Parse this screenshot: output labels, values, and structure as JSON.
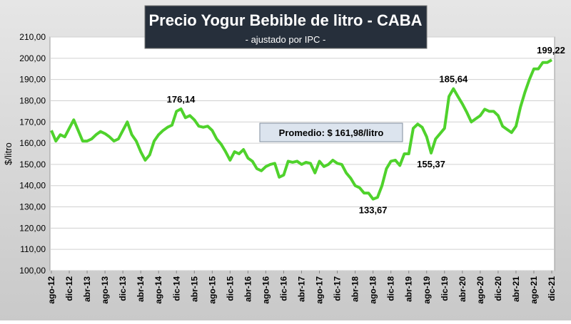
{
  "chart_data": {
    "type": "line",
    "title": "Precio Yogur Bebible de litro - CABA",
    "subtitle": "- ajustado por IPC -",
    "y_label": "$/litro",
    "annotations": [
      "Promedio: $ 161,98/litro"
    ],
    "categories": [
      "ago-12",
      null,
      null,
      null,
      "dic-12",
      null,
      null,
      null,
      "abr-13",
      null,
      null,
      null,
      "ago-13",
      null,
      null,
      null,
      "dic-13",
      null,
      null,
      null,
      "abr-14",
      null,
      null,
      null,
      "ago-14",
      null,
      null,
      null,
      "dic-14",
      null,
      null,
      null,
      "abr-15",
      null,
      null,
      null,
      "ago-15",
      null,
      null,
      null,
      "dic-15",
      null,
      null,
      null,
      "abr-16",
      null,
      null,
      null,
      "ago-16",
      null,
      null,
      null,
      "dic-16",
      null,
      null,
      null,
      "abr-17",
      null,
      null,
      null,
      "ago-17",
      null,
      null,
      null,
      "dic-17",
      null,
      null,
      null,
      "abr-18",
      null,
      null,
      null,
      "ago-18",
      null,
      null,
      null,
      "dic-18",
      null,
      null,
      null,
      "abr-19",
      null,
      null,
      null,
      "ago-19",
      null,
      null,
      null,
      "dic-19",
      null,
      null,
      null,
      "abr-20",
      null,
      null,
      null,
      "ago-20",
      null,
      null,
      null,
      "dic-20",
      null,
      null,
      null,
      "abr-21",
      null,
      null,
      null,
      "ago-21",
      null,
      null,
      null,
      "dic-21"
    ],
    "values": [
      166,
      161,
      164,
      163,
      167,
      171,
      166,
      161,
      161,
      162,
      164,
      165.5,
      164.5,
      163,
      161,
      162,
      166,
      170,
      164,
      161,
      156,
      152,
      154.5,
      161,
      164,
      166,
      167.5,
      168.5,
      175,
      176.14,
      172,
      173,
      171,
      168,
      167.5,
      168,
      166,
      162,
      159.5,
      156,
      152,
      156,
      155,
      157,
      153,
      151.5,
      148,
      147,
      149,
      150,
      150.5,
      144,
      145,
      151.5,
      151,
      151.5,
      150,
      151,
      150.5,
      146,
      151.5,
      149,
      150,
      152,
      150.5,
      150,
      146,
      143.5,
      140,
      139,
      136.5,
      136.5,
      133.67,
      134.5,
      140,
      148,
      151.5,
      152,
      149.5,
      155,
      155,
      167,
      169,
      167.5,
      163,
      155.37,
      162,
      164.5,
      167,
      182,
      185.64,
      182,
      178.5,
      174.5,
      170,
      171.5,
      173,
      176,
      175,
      175,
      173,
      168,
      166.5,
      165,
      168,
      177,
      184,
      190,
      195,
      195,
      198,
      198,
      199.22
    ],
    "value_labels": [
      null,
      null,
      null,
      null,
      null,
      null,
      null,
      null,
      null,
      null,
      null,
      null,
      null,
      null,
      null,
      null,
      null,
      null,
      null,
      null,
      null,
      null,
      null,
      null,
      null,
      null,
      null,
      null,
      null,
      "176,14",
      null,
      null,
      null,
      null,
      null,
      null,
      null,
      null,
      null,
      null,
      null,
      null,
      null,
      null,
      null,
      null,
      null,
      null,
      null,
      null,
      null,
      null,
      null,
      null,
      null,
      null,
      null,
      null,
      null,
      null,
      null,
      null,
      null,
      null,
      null,
      null,
      null,
      null,
      null,
      null,
      null,
      null,
      "133,67",
      null,
      null,
      null,
      null,
      null,
      null,
      null,
      null,
      null,
      null,
      null,
      null,
      "155,37",
      null,
      null,
      null,
      null,
      "185,64",
      null,
      null,
      null,
      null,
      null,
      null,
      null,
      null,
      null,
      null,
      null,
      null,
      null,
      null,
      null,
      null,
      null,
      null,
      null,
      null,
      null,
      "199,22"
    ],
    "color": "#4fd22c",
    "ylim": [
      100,
      210
    ],
    "yticks": [
      {
        "value": 100,
        "label": "100,00"
      },
      {
        "value": 110,
        "label": "110,00"
      },
      {
        "value": 120,
        "label": "120,00"
      },
      {
        "value": 130,
        "label": "130,00"
      },
      {
        "value": 140,
        "label": "140,00"
      },
      {
        "value": 150,
        "label": "150,00"
      },
      {
        "value": 160,
        "label": "160,00"
      },
      {
        "value": 170,
        "label": "170,00"
      },
      {
        "value": 180,
        "label": "180,00"
      },
      {
        "value": 190,
        "label": "190,00"
      },
      {
        "value": 200,
        "label": "200,00"
      },
      {
        "value": 210,
        "label": "210,00"
      }
    ],
    "grid": true
  }
}
